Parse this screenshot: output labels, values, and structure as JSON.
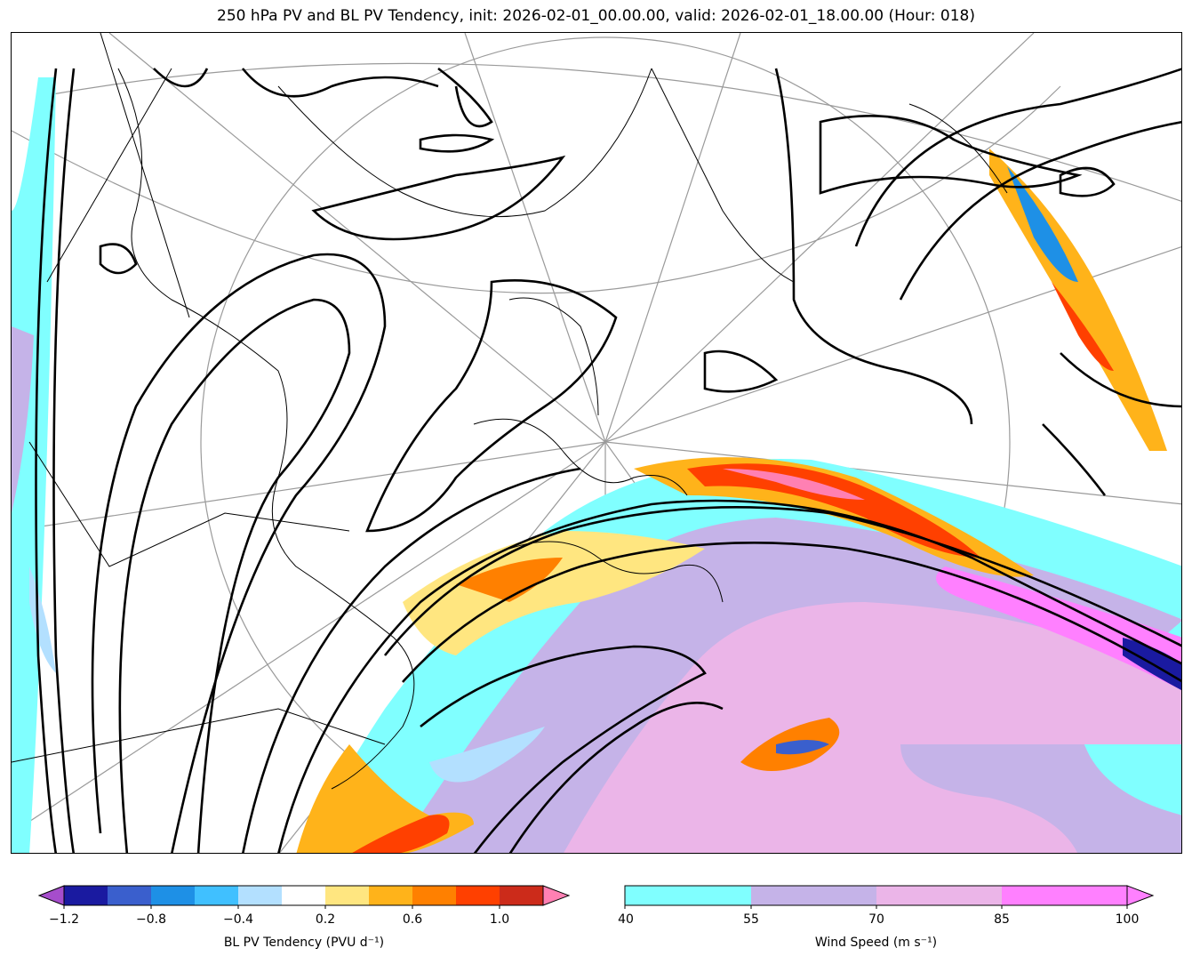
{
  "title": "250 hPa PV and BL PV Tendency, init: 2026-02-01_00.00.00, valid: 2026-02-01_18.00.00 (Hour: 018)",
  "colors": {
    "pv_contour": "#000000",
    "coast": "#000000",
    "graticule": "#9a9a9a",
    "wind": [
      "#80ffff",
      "#c5b3e8",
      "#ebb5e8",
      "#ff80ff"
    ],
    "pv_tendency": [
      "#a64dcc",
      "#1a1aa0",
      "#3a5fcd",
      "#1e90e6",
      "#40c0ff",
      "#b3e0ff",
      "#ffffff",
      "#ffe680",
      "#ffb31a",
      "#ff8000",
      "#ff4000",
      "#cc2b1a",
      "#ff80b3"
    ]
  },
  "colorbar_pv": {
    "label": "BL PV Tendency (PVU d⁻¹)",
    "ticks": [
      "−1.2",
      "−0.8",
      "−0.4",
      "0.2",
      "0.6",
      "1.0"
    ]
  },
  "colorbar_wind": {
    "label": "Wind Speed (m s⁻¹)",
    "ticks": [
      "40",
      "55",
      "70",
      "85",
      "100"
    ]
  }
}
